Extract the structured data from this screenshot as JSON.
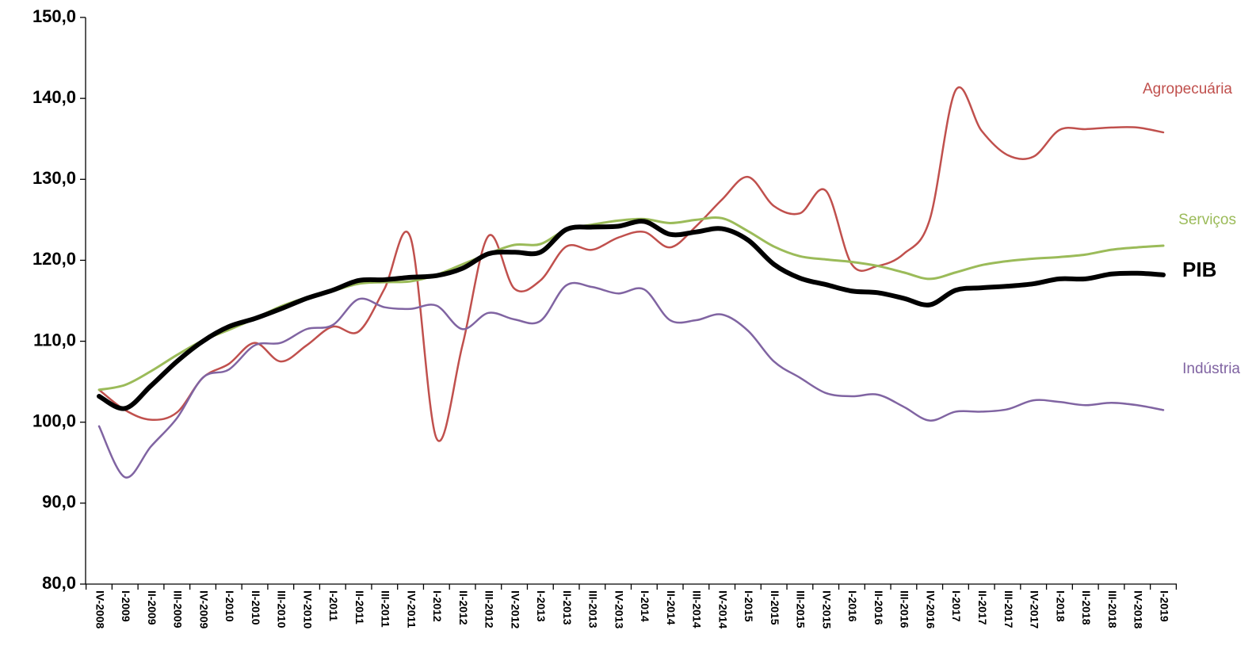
{
  "chart_data": {
    "type": "line",
    "categories": [
      "IV-2008",
      "I-2009",
      "II-2009",
      "III-2009",
      "IV-2009",
      "I-2010",
      "II-2010",
      "III-2010",
      "IV-2010",
      "I-2011",
      "II-2011",
      "III-2011",
      "IV-2011",
      "I-2012",
      "II-2012",
      "III-2012",
      "IV-2012",
      "I-2013",
      "II-2013",
      "III-2013",
      "IV-2013",
      "I-2014",
      "II-2014",
      "III-2014",
      "IV-2014",
      "I-2015",
      "II-2015",
      "III-2015",
      "IV-2015",
      "I-2016",
      "II-2016",
      "III-2016",
      "IV-2016",
      "I-2017",
      "II-2017",
      "III-2017",
      "IV-2017",
      "I-2018",
      "II-2018",
      "III-2018",
      "IV-2018",
      "I-2019"
    ],
    "series": [
      {
        "name": "Agropecuária",
        "color": "#c0504d",
        "values": [
          104,
          101.5,
          100.3,
          101.2,
          105.5,
          107.2,
          109.8,
          107.5,
          109.5,
          111.8,
          111.2,
          116.5,
          122.8,
          98,
          109.5,
          123,
          116.5,
          117.5,
          121.7,
          121.3,
          122.8,
          123.5,
          121.6,
          124.2,
          127.5,
          130.3,
          126.7,
          125.8,
          128.6,
          119.5,
          119.3,
          120.8,
          125,
          141,
          136,
          133,
          132.8,
          136.1,
          136.2,
          136.4,
          136.4,
          135.8
        ]
      },
      {
        "name": "Serviços",
        "color": "#9bbb59",
        "values": [
          104,
          104.6,
          106.3,
          108.3,
          110.1,
          111.4,
          112.8,
          114.3,
          115.4,
          116.2,
          117.1,
          117.3,
          117.4,
          118.2,
          119.5,
          120.8,
          121.9,
          122,
          123.8,
          124.4,
          124.9,
          125.1,
          124.6,
          125,
          125.2,
          123.6,
          121.7,
          120.5,
          120.1,
          119.8,
          119.3,
          118.5,
          117.7,
          118.5,
          119.4,
          119.9,
          120.2,
          120.4,
          120.7,
          121.3,
          121.6,
          121.8
        ]
      },
      {
        "name": "PIB",
        "color": "#000000",
        "values": [
          103.2,
          101.7,
          104.5,
          107.5,
          110,
          111.8,
          112.8,
          114,
          115.3,
          116.3,
          117.5,
          117.6,
          117.9,
          118.1,
          119,
          120.8,
          121,
          121,
          123.8,
          124.1,
          124.2,
          124.8,
          123.2,
          123.5,
          123.9,
          122.5,
          119.5,
          117.8,
          117,
          116.2,
          116,
          115.3,
          114.5,
          116.3,
          116.6,
          116.8,
          117.1,
          117.7,
          117.7,
          118.3,
          118.4,
          118.2
        ]
      },
      {
        "name": "Indústria",
        "color": "#8064a2",
        "values": [
          99.5,
          93.2,
          97,
          100.5,
          105.5,
          106.5,
          109.5,
          109.8,
          111.5,
          112,
          115.2,
          114.2,
          114,
          114.4,
          111.5,
          113.5,
          112.7,
          112.5,
          116.9,
          116.7,
          115.9,
          116.4,
          112.6,
          112.6,
          113.3,
          111.3,
          107.5,
          105.5,
          103.6,
          103.2,
          103.4,
          101.9,
          100.2,
          101.3,
          101.3,
          101.6,
          102.7,
          102.5,
          102.1,
          102.4,
          102.1,
          101.5
        ]
      }
    ],
    "ylim": [
      80,
      150
    ],
    "yticks": [
      {
        "value": 80,
        "label": "80,0"
      },
      {
        "value": 90,
        "label": "90,0"
      },
      {
        "value": 100,
        "label": "100,0"
      },
      {
        "value": 110,
        "label": "110,0"
      },
      {
        "value": 120,
        "label": "120,0"
      },
      {
        "value": 130,
        "label": "130,0"
      },
      {
        "value": 140,
        "label": "140,0"
      },
      {
        "value": 150,
        "label": "150,0"
      }
    ],
    "grid": false
  }
}
